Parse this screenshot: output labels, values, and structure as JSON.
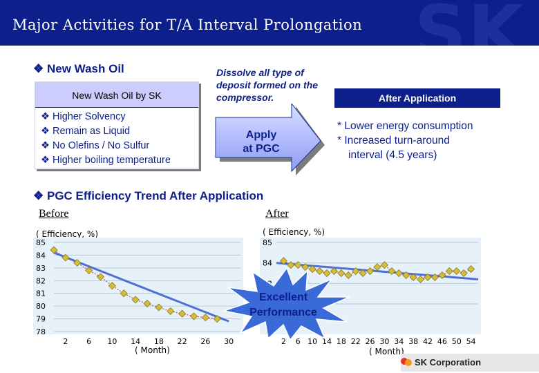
{
  "header": {
    "title": "Major Activities for T/A Interval Prolongation",
    "logo_text": "SK"
  },
  "new_wash_oil": {
    "heading": "New Wash Oil",
    "box_title": "New Wash Oil by SK",
    "features": [
      "Higher Solvency",
      "Remain as Liquid",
      "No Olefins / No Sulfur",
      "Higher boiling temperature"
    ]
  },
  "dissolve_text": "Dissolve all type of deposit  formed on the compressor.",
  "apply_arrow": {
    "line1": "Apply",
    "line2": "at PGC"
  },
  "after_application": {
    "title": "After Application",
    "items": [
      "* Lower energy consumption",
      "* Increased turn-around",
      "interval (4.5 years)"
    ]
  },
  "trend": {
    "heading": "PGC Efficiency Trend After Application",
    "before_label": "Before",
    "after_label": "After",
    "y_unit": "( Efficiency, %)",
    "x_unit": "( Month)"
  },
  "callout": {
    "line1": "Excellent",
    "line2": "Performance"
  },
  "footer": {
    "company": "SK Corporation"
  },
  "colors": {
    "navy": "#0d1f8a",
    "trend_line": "#4f6fd8",
    "marker": "#d4bc3c",
    "chart_bg": "#e6f1f9"
  },
  "chart_data": [
    {
      "type": "line",
      "title": "Before",
      "ylabel": "( Efficiency, %)",
      "xlabel": "( Month)",
      "x_ticks": [
        "2",
        "6",
        "10",
        "14",
        "18",
        "22",
        "26",
        "30"
      ],
      "y_ticks": [
        "85",
        "84",
        "83",
        "82",
        "81",
        "80",
        "79",
        "78"
      ],
      "ylim": [
        78,
        85
      ],
      "xlim": [
        0,
        32
      ],
      "series": [
        {
          "x": [
            0,
            2,
            4,
            6,
            8,
            10,
            12,
            14,
            16,
            18,
            20,
            22,
            24,
            26,
            28
          ],
          "values": [
            84.4,
            83.8,
            83.4,
            82.8,
            82.3,
            81.6,
            81.0,
            80.5,
            80.2,
            79.9,
            79.6,
            79.4,
            79.2,
            79.1,
            79.0
          ]
        }
      ],
      "trend": {
        "x": [
          0,
          30
        ],
        "values": [
          84.2,
          78.8
        ]
      }
    },
    {
      "type": "line",
      "title": "After",
      "ylabel": "( Efficiency, %)",
      "xlabel": "( Month)",
      "x_ticks": [
        "2",
        "6",
        "10",
        "14",
        "18",
        "22",
        "26",
        "30",
        "34",
        "38",
        "42",
        "46",
        "50",
        "54"
      ],
      "y_ticks": [
        "85",
        "84",
        "83",
        "82"
      ],
      "ylim": [
        82,
        85
      ],
      "xlim": [
        0,
        56
      ],
      "series": [
        {
          "x": [
            2,
            4,
            6,
            8,
            10,
            12,
            14,
            16,
            18,
            20,
            22,
            24,
            26,
            28,
            30,
            32,
            34,
            36,
            38,
            40,
            42,
            44,
            46,
            48,
            50,
            52,
            54
          ],
          "values": [
            84.1,
            83.9,
            83.9,
            83.8,
            83.7,
            83.6,
            83.5,
            83.6,
            83.5,
            83.4,
            83.6,
            83.5,
            83.6,
            83.8,
            83.9,
            83.6,
            83.5,
            83.4,
            83.3,
            83.2,
            83.3,
            83.3,
            83.4,
            83.6,
            83.6,
            83.5,
            83.7
          ]
        }
      ],
      "trend": {
        "x": [
          0,
          56
        ],
        "values": [
          84.0,
          83.2
        ]
      }
    }
  ]
}
